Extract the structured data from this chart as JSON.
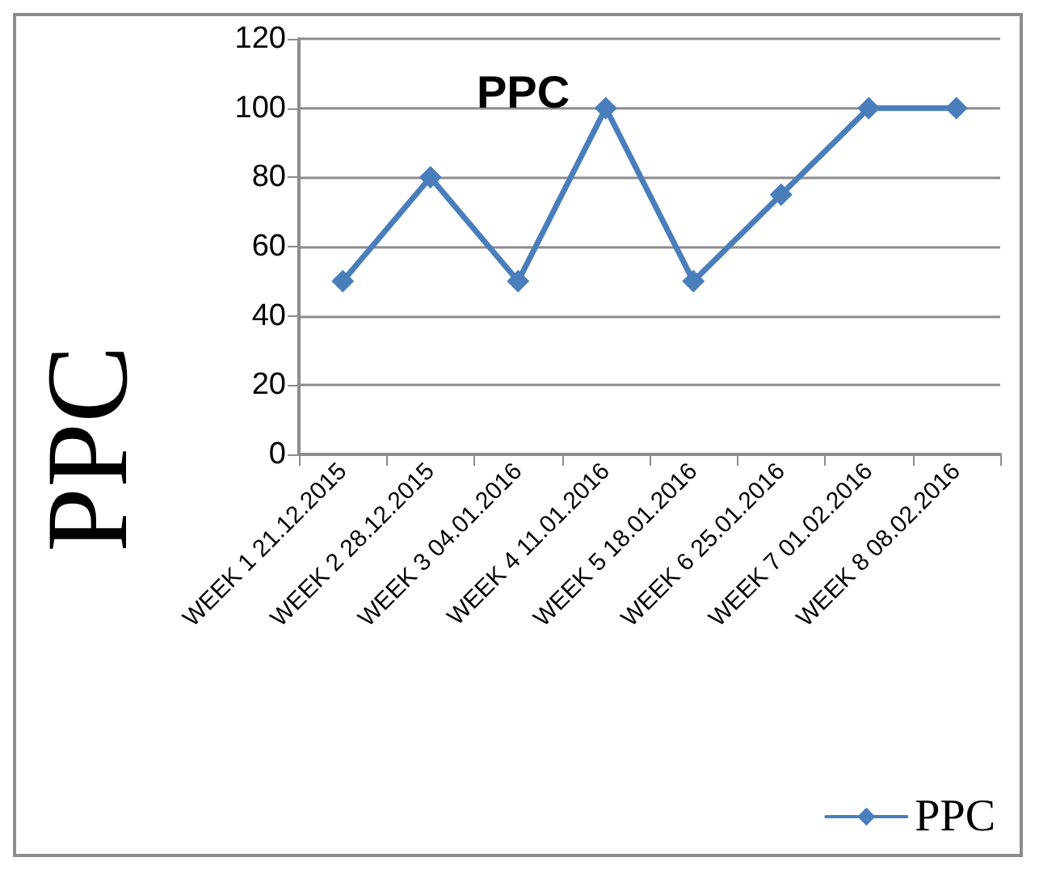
{
  "chart_data": {
    "type": "line",
    "title": "PPC",
    "ylabel": "PPC",
    "categories": [
      "WEEK 1 21.12.2015",
      "WEEK 2 28.12.2015",
      "WEEK 3 04.01.2016",
      "WEEK 4 11.01.2016",
      "WEEK 5 18.01.2016",
      "WEEK 6 25.01.2016",
      "WEEK 7 01.02.2016",
      "WEEK 8 08.02.2016"
    ],
    "series": [
      {
        "name": "PPC",
        "color": "#4a7ebb",
        "values": [
          50,
          80,
          50,
          100,
          50,
          75,
          100,
          100
        ]
      }
    ],
    "ylim": [
      0,
      120
    ],
    "yticks": [
      0,
      20,
      40,
      60,
      80,
      100,
      120
    ],
    "grid": "y",
    "legend": "bottom right",
    "marker": "diamond",
    "line_style": "solid"
  }
}
